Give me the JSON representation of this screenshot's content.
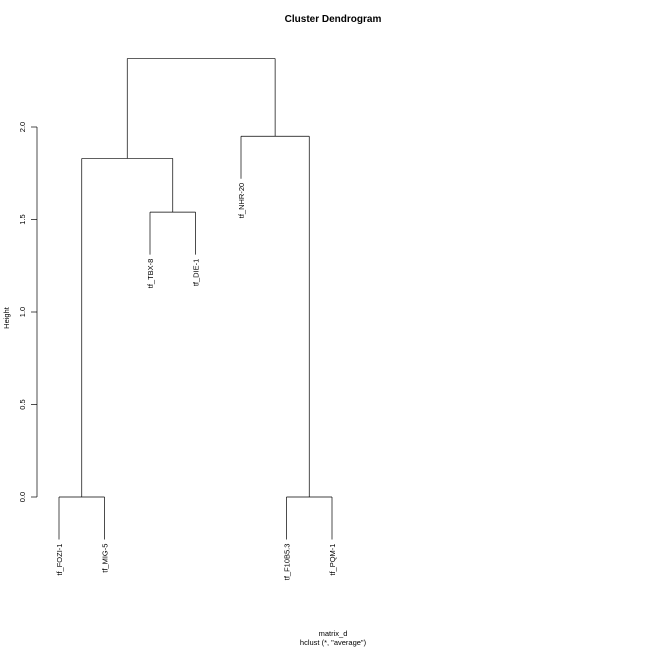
{
  "chart_data": {
    "type": "dendrogram",
    "title": "Cluster Dendrogram",
    "ylabel": "Height",
    "xlabel": "matrix_d",
    "sub": "hclust (*, \"average\")",
    "ylim": [
      0,
      2.4
    ],
    "yticks": [
      0.0,
      0.5,
      1.0,
      1.5,
      2.0
    ],
    "ytick_labels": [
      "0.0",
      "0.5",
      "1.0",
      "1.5",
      "2.0"
    ],
    "leaves": [
      "tf_FOZI-1",
      "tf_MIG-5",
      "tf_TBX-8",
      "tf_DIE-1",
      "tf_NHR-20",
      "tf_F10B5.3",
      "tf_PQM-1"
    ],
    "merges": [
      {
        "left": "tf_FOZI-1",
        "right": "tf_MIG-5",
        "height": 0.0
      },
      {
        "left": "tf_F10B5.3",
        "right": "tf_PQM-1",
        "height": 0.0
      },
      {
        "left": "tf_TBX-8",
        "right": "tf_DIE-1",
        "height": 1.54
      },
      {
        "left": "cluster(tf_FOZI-1, tf_MIG-5)",
        "right": "cluster(tf_TBX-8, tf_DIE-1)",
        "height": 1.83
      },
      {
        "left": "tf_NHR-20",
        "right": "cluster(tf_F10B5.3, tf_PQM-1)",
        "height": 1.95
      },
      {
        "left": "cluster(tf_FOZI-1, tf_MIG-5, tf_TBX-8, tf_DIE-1)",
        "right": "cluster(tf_NHR-20, tf_F10B5.3, tf_PQM-1)",
        "height": 2.37
      }
    ],
    "leaf_label_heights": [
      0.0,
      0.0,
      1.54,
      1.54,
      1.95,
      0.0,
      0.0
    ]
  }
}
